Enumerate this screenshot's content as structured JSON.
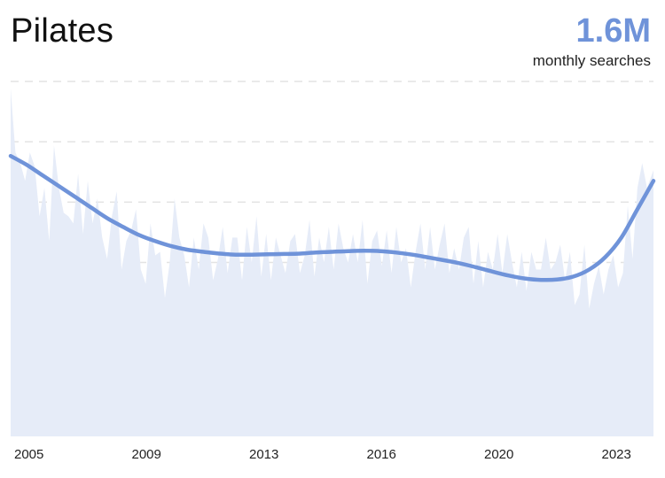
{
  "header": {
    "title": "Pilates",
    "metric_value": "1.6M",
    "metric_label": "monthly searches"
  },
  "colors": {
    "trend": "#6f93d9",
    "area": "#e6ecf8",
    "grid": "#e3e3e3",
    "metric": "#6f93d9"
  },
  "chart_data": {
    "type": "area",
    "title": "Pilates",
    "xlabel": "",
    "ylabel": "",
    "xlim": [
      2004.0,
      2024.0
    ],
    "ylim": [
      0,
      100
    ],
    "grid": true,
    "x_ticks": [
      {
        "label": "2005",
        "value": 2004.6
      },
      {
        "label": "2009",
        "value": 2008.6
      },
      {
        "label": "2013",
        "value": 2012.6
      },
      {
        "label": "2016",
        "value": 2016.6
      },
      {
        "label": "2020",
        "value": 2020.6
      },
      {
        "label": "2023",
        "value": 2024.6
      }
    ],
    "series": [
      {
        "kind": "area",
        "x": [
          2004.0,
          2004.15,
          2004.3,
          2004.45,
          2004.6,
          2004.75,
          2004.9,
          2005.05,
          2005.2,
          2005.35,
          2005.5,
          2005.65,
          2005.8,
          2005.95,
          2006.1,
          2006.25,
          2006.4,
          2006.55,
          2006.7,
          2006.85,
          2007.0,
          2007.15,
          2007.3,
          2007.45,
          2007.6,
          2007.75,
          2007.9,
          2008.05,
          2008.2,
          2008.35,
          2008.5,
          2008.65,
          2008.8,
          2008.95,
          2009.1,
          2009.25,
          2009.4,
          2009.55,
          2009.7,
          2009.85,
          2010.0,
          2010.15,
          2010.3,
          2010.45,
          2010.6,
          2010.75,
          2010.9,
          2011.05,
          2011.2,
          2011.35,
          2011.5,
          2011.65,
          2011.8,
          2011.95,
          2012.1,
          2012.25,
          2012.4,
          2012.55,
          2012.7,
          2012.85,
          2013.0,
          2013.15,
          2013.3,
          2013.45,
          2013.6,
          2013.75,
          2013.9,
          2014.05,
          2014.2,
          2014.35,
          2014.5,
          2014.65,
          2014.8,
          2014.95,
          2015.1,
          2015.25,
          2015.4,
          2015.55,
          2015.7,
          2015.85,
          2016.0,
          2016.15,
          2016.3,
          2016.45,
          2016.6,
          2016.75,
          2016.9,
          2017.05,
          2017.2,
          2017.35,
          2017.5,
          2017.65,
          2017.8,
          2017.95,
          2018.1,
          2018.25,
          2018.4,
          2018.55,
          2018.7,
          2018.85,
          2019.0,
          2019.15,
          2019.3,
          2019.45,
          2019.6,
          2019.75,
          2019.9,
          2020.05,
          2020.2,
          2020.35,
          2020.5,
          2020.65,
          2020.8,
          2020.95,
          2021.1,
          2021.25,
          2021.4,
          2021.55,
          2021.7,
          2021.85,
          2022.0,
          2022.15,
          2022.3,
          2022.45,
          2022.6,
          2022.75,
          2022.9,
          2023.05,
          2023.2,
          2023.35,
          2023.5,
          2023.65,
          2023.8,
          2024.0
        ],
        "y": [
          98,
          80,
          77,
          72,
          80,
          76,
          62,
          70,
          55,
          82,
          70,
          63,
          62,
          60,
          74,
          57,
          72,
          60,
          67,
          56,
          50,
          62,
          69,
          47,
          55,
          58,
          64,
          47,
          43,
          60,
          51,
          52,
          39,
          49,
          67,
          56,
          51,
          42,
          56,
          47,
          60,
          56,
          44,
          50,
          59,
          46,
          56,
          56,
          44,
          59,
          49,
          62,
          45,
          57,
          44,
          56,
          51,
          46,
          55,
          57,
          46,
          51,
          61,
          45,
          56,
          49,
          59,
          47,
          60,
          53,
          49,
          57,
          49,
          61,
          43,
          55,
          58,
          48,
          58,
          46,
          59,
          49,
          53,
          42,
          52,
          60,
          47,
          59,
          47,
          54,
          60,
          46,
          53,
          47,
          56,
          59,
          43,
          55,
          42,
          52,
          47,
          57,
          46,
          57,
          49,
          42,
          52,
          41,
          52,
          47,
          47,
          56,
          47,
          49,
          54,
          44,
          52,
          37,
          40,
          54,
          36,
          43,
          48,
          40,
          47,
          51,
          42,
          46,
          65,
          50,
          70,
          77,
          70,
          75
        ]
      },
      {
        "kind": "line",
        "x": [
          2004.0,
          2004.5,
          2005.0,
          2005.5,
          2006.0,
          2006.5,
          2007.0,
          2007.5,
          2008.0,
          2008.5,
          2009.0,
          2009.5,
          2010.0,
          2010.5,
          2011.0,
          2011.5,
          2012.0,
          2012.5,
          2013.0,
          2013.5,
          2014.0,
          2014.5,
          2015.0,
          2015.5,
          2016.0,
          2016.5,
          2017.0,
          2017.5,
          2018.0,
          2018.5,
          2019.0,
          2019.5,
          2020.0,
          2020.5,
          2021.0,
          2021.5,
          2022.0,
          2022.5,
          2023.0,
          2023.5,
          2024.0
        ],
        "y": [
          79,
          76.5,
          73.5,
          70.5,
          67.5,
          64.5,
          61.5,
          59,
          56.7,
          55,
          53.6,
          52.6,
          52,
          51.5,
          51.2,
          51.2,
          51.3,
          51.4,
          51.5,
          51.8,
          52,
          52.2,
          52.3,
          52.2,
          51.8,
          51.2,
          50.4,
          49.6,
          48.7,
          47.6,
          46.4,
          45.3,
          44.5,
          44.1,
          44.2,
          45,
          47,
          50.5,
          56,
          64,
          72
        ]
      }
    ]
  }
}
